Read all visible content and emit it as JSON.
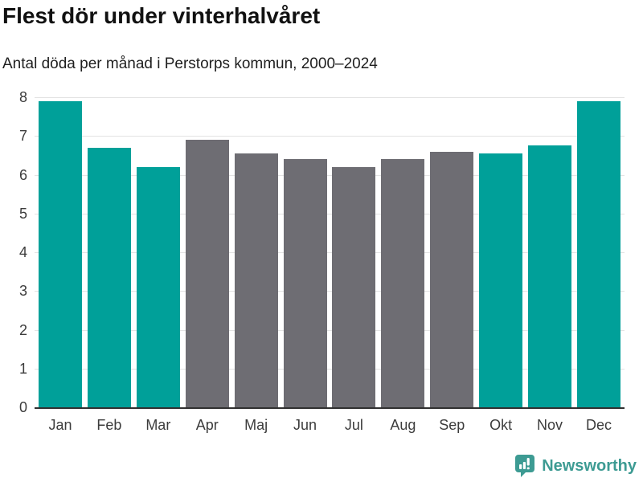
{
  "header": {
    "title": "Flest dör under vinterhalvåret",
    "subtitle": "Antal döda per månad i Perstorps kommun, 2000–2024"
  },
  "chart_data": {
    "type": "bar",
    "title": "Flest dör under vinterhalvåret",
    "subtitle": "Antal döda per månad i Perstorps kommun, 2000–2024",
    "categories": [
      "Jan",
      "Feb",
      "Mar",
      "Apr",
      "Maj",
      "Jun",
      "Jul",
      "Aug",
      "Sep",
      "Okt",
      "Nov",
      "Dec"
    ],
    "values": [
      7.9,
      6.7,
      6.2,
      6.9,
      6.55,
      6.4,
      6.2,
      6.4,
      6.6,
      6.55,
      6.75,
      7.9
    ],
    "highlighted": [
      true,
      true,
      true,
      false,
      false,
      false,
      false,
      false,
      false,
      true,
      true,
      true
    ],
    "xlabel": "",
    "ylabel": "",
    "ylim": [
      0,
      8
    ],
    "yticks": [
      0,
      1,
      2,
      3,
      4,
      5,
      6,
      7,
      8
    ],
    "grid": true,
    "legend": "none",
    "colors": {
      "highlight": "#00A099",
      "base": "#6E6D73",
      "gridline": "#E3E3E3",
      "axis_line": "#303030",
      "tick_label": "#3C3C3C"
    }
  },
  "footer": {
    "brand": "Newsworthy",
    "brand_color": "#3D9B93",
    "logo_icon": "newsworthy-bubble-barchart-icon"
  }
}
